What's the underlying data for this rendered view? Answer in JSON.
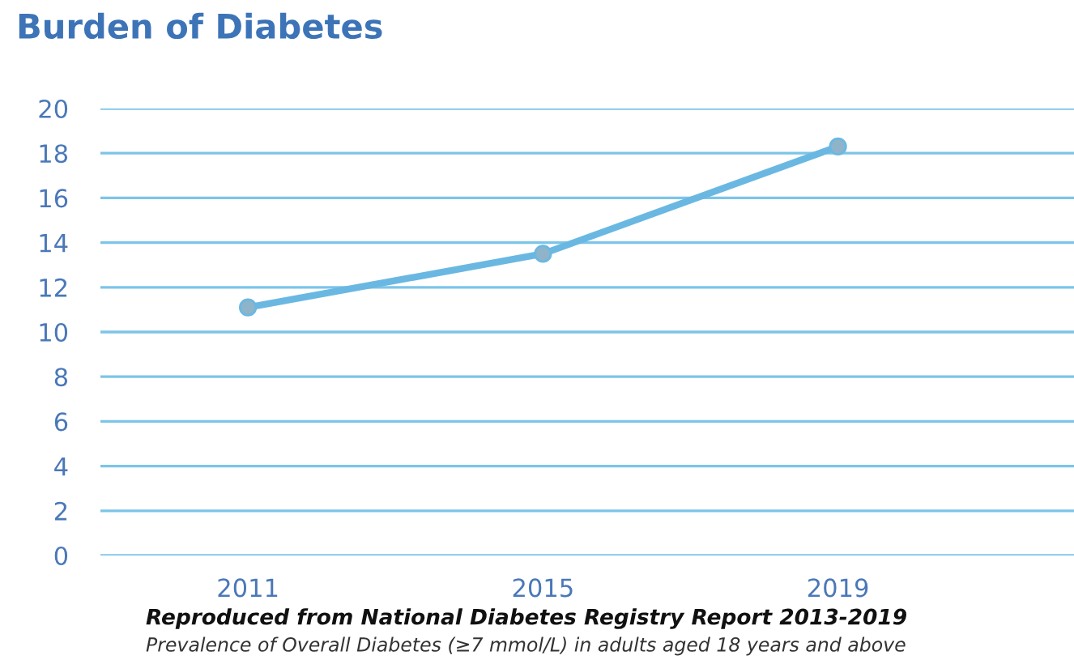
{
  "chart_data": {
    "type": "line",
    "title": "Burden of Diabetes",
    "categories": [
      "2011",
      "2015",
      "2019"
    ],
    "series": [
      {
        "color": "#6ab8e2",
        "values": [
          11.1,
          13.5,
          18.3
        ]
      }
    ],
    "ylim": [
      0,
      20
    ],
    "yticks": [
      0,
      2,
      4,
      6,
      8,
      10,
      12,
      14,
      16,
      18,
      20
    ],
    "grid": "y",
    "marker": "circle",
    "line_style": "solid",
    "annotations": [
      "Reproduced from National Diabetes Registry Report 2013-2019",
      "Prevalence of Overall Diabetes (≥7 mmol/L) in adults aged 18 years and above"
    ]
  }
}
